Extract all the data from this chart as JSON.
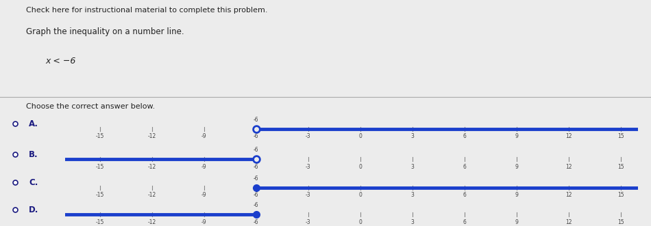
{
  "title_line1": "Check here for instructional material to complete this problem.",
  "title_line2": "Graph the inequality on a number line.",
  "inequality": "x < −6",
  "choose_text": "Choose the correct answer below.",
  "background_color": "#ececec",
  "x_min": -17,
  "x_max": 16,
  "tick_positions": [
    -15,
    -12,
    -9,
    -6,
    -3,
    0,
    3,
    6,
    9,
    12,
    15
  ],
  "boundary_value": -6,
  "line_color": "#1b3fcc",
  "axis_color": "#888888",
  "rows": [
    {
      "label": "A.",
      "direction": "right",
      "closed": false
    },
    {
      "label": "B.",
      "direction": "left",
      "closed": false
    },
    {
      "label": "C.",
      "direction": "right",
      "closed": true
    },
    {
      "label": "D.",
      "direction": "left",
      "closed": true
    }
  ]
}
